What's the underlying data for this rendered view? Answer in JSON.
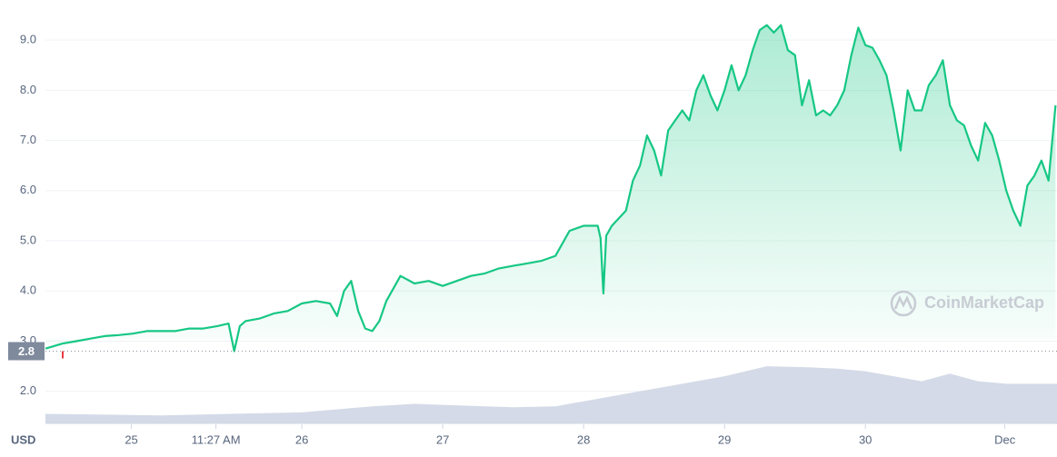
{
  "chart_data": {
    "type": "line",
    "color": "#16c784",
    "axis_label": "USD",
    "watermark": "CoinMarketCap",
    "current_price": 2.8,
    "grid": true,
    "xlim": [
      24.18,
      31.36
    ],
    "ylim": [
      1.36,
      9.8
    ],
    "yticks": [
      {
        "value": 2,
        "label": "2.0"
      },
      {
        "value": 3,
        "label": "3.0"
      },
      {
        "value": 4,
        "label": "4.0"
      },
      {
        "value": 5,
        "label": "5.0"
      },
      {
        "value": 6,
        "label": "6.0"
      },
      {
        "value": 7,
        "label": "7.0"
      },
      {
        "value": 8,
        "label": "8.0"
      },
      {
        "value": 9,
        "label": "9.0"
      }
    ],
    "xticks": [
      {
        "value": 24.79,
        "label": "25"
      },
      {
        "value": 25.39,
        "label": "11:27 AM"
      },
      {
        "value": 26,
        "label": "26"
      },
      {
        "value": 27,
        "label": "27"
      },
      {
        "value": 28,
        "label": "28"
      },
      {
        "value": 29,
        "label": "29"
      },
      {
        "value": 30,
        "label": "30"
      },
      {
        "value": 30.99,
        "label": "Dec"
      }
    ],
    "x": [
      24.18,
      24.3,
      24.4,
      24.5,
      24.6,
      24.7,
      24.8,
      24.9,
      25.0,
      25.1,
      25.2,
      25.3,
      25.4,
      25.48,
      25.52,
      25.56,
      25.6,
      25.7,
      25.8,
      25.9,
      26.0,
      26.1,
      26.2,
      26.25,
      26.3,
      26.35,
      26.4,
      26.45,
      26.5,
      26.55,
      26.6,
      26.7,
      26.8,
      26.9,
      27.0,
      27.1,
      27.2,
      27.3,
      27.4,
      27.5,
      27.6,
      27.7,
      27.8,
      27.9,
      28.0,
      28.1,
      28.12,
      28.14,
      28.16,
      28.2,
      28.3,
      28.35,
      28.4,
      28.45,
      28.5,
      28.55,
      28.6,
      28.65,
      28.7,
      28.75,
      28.8,
      28.85,
      28.9,
      28.95,
      29.0,
      29.05,
      29.1,
      29.15,
      29.2,
      29.25,
      29.3,
      29.35,
      29.4,
      29.45,
      29.5,
      29.55,
      29.6,
      29.65,
      29.7,
      29.75,
      29.8,
      29.85,
      29.9,
      29.95,
      30.0,
      30.05,
      30.1,
      30.15,
      30.2,
      30.25,
      30.3,
      30.35,
      30.4,
      30.45,
      30.5,
      30.55,
      30.6,
      30.65,
      30.7,
      30.75,
      30.8,
      30.85,
      30.9,
      30.95,
      31.0,
      31.05,
      31.1,
      31.15,
      31.2,
      31.25,
      31.3,
      31.35
    ],
    "values": [
      2.85,
      2.95,
      3.0,
      3.05,
      3.1,
      3.12,
      3.15,
      3.2,
      3.2,
      3.2,
      3.25,
      3.25,
      3.3,
      3.35,
      2.8,
      3.3,
      3.4,
      3.45,
      3.55,
      3.6,
      3.75,
      3.8,
      3.75,
      3.5,
      4.0,
      4.2,
      3.6,
      3.25,
      3.2,
      3.4,
      3.8,
      4.3,
      4.15,
      4.2,
      4.1,
      4.2,
      4.3,
      4.35,
      4.45,
      4.5,
      4.55,
      4.6,
      4.7,
      5.2,
      5.3,
      5.3,
      5.05,
      3.95,
      5.1,
      5.3,
      5.6,
      6.2,
      6.5,
      7.1,
      6.8,
      6.3,
      7.2,
      7.4,
      7.6,
      7.4,
      8.0,
      8.3,
      7.9,
      7.6,
      8.0,
      8.5,
      8.0,
      8.3,
      8.8,
      9.2,
      9.3,
      9.15,
      9.3,
      8.8,
      8.7,
      7.7,
      8.2,
      7.5,
      7.6,
      7.5,
      7.7,
      8.0,
      8.7,
      9.25,
      8.9,
      8.85,
      8.6,
      8.3,
      7.6,
      6.8,
      8.0,
      7.6,
      7.6,
      8.1,
      8.3,
      8.6,
      7.7,
      7.4,
      7.3,
      6.9,
      6.6,
      7.35,
      7.1,
      6.6,
      6.0,
      5.6,
      5.3,
      6.1,
      6.3,
      6.6,
      6.2,
      7.7
    ],
    "volume": {
      "color": "#cfd6e4",
      "x": [
        24.18,
        25.0,
        25.5,
        26.0,
        26.5,
        26.8,
        27.0,
        27.5,
        27.8,
        28.0,
        28.3,
        28.7,
        29.0,
        29.3,
        29.6,
        29.8,
        30.0,
        30.2,
        30.4,
        30.6,
        30.8,
        31.0,
        31.36
      ],
      "values": [
        1.55,
        1.52,
        1.55,
        1.58,
        1.7,
        1.75,
        1.73,
        1.68,
        1.7,
        1.8,
        1.95,
        2.15,
        2.3,
        2.5,
        2.48,
        2.45,
        2.4,
        2.3,
        2.2,
        2.35,
        2.2,
        2.15,
        2.15
      ]
    }
  }
}
